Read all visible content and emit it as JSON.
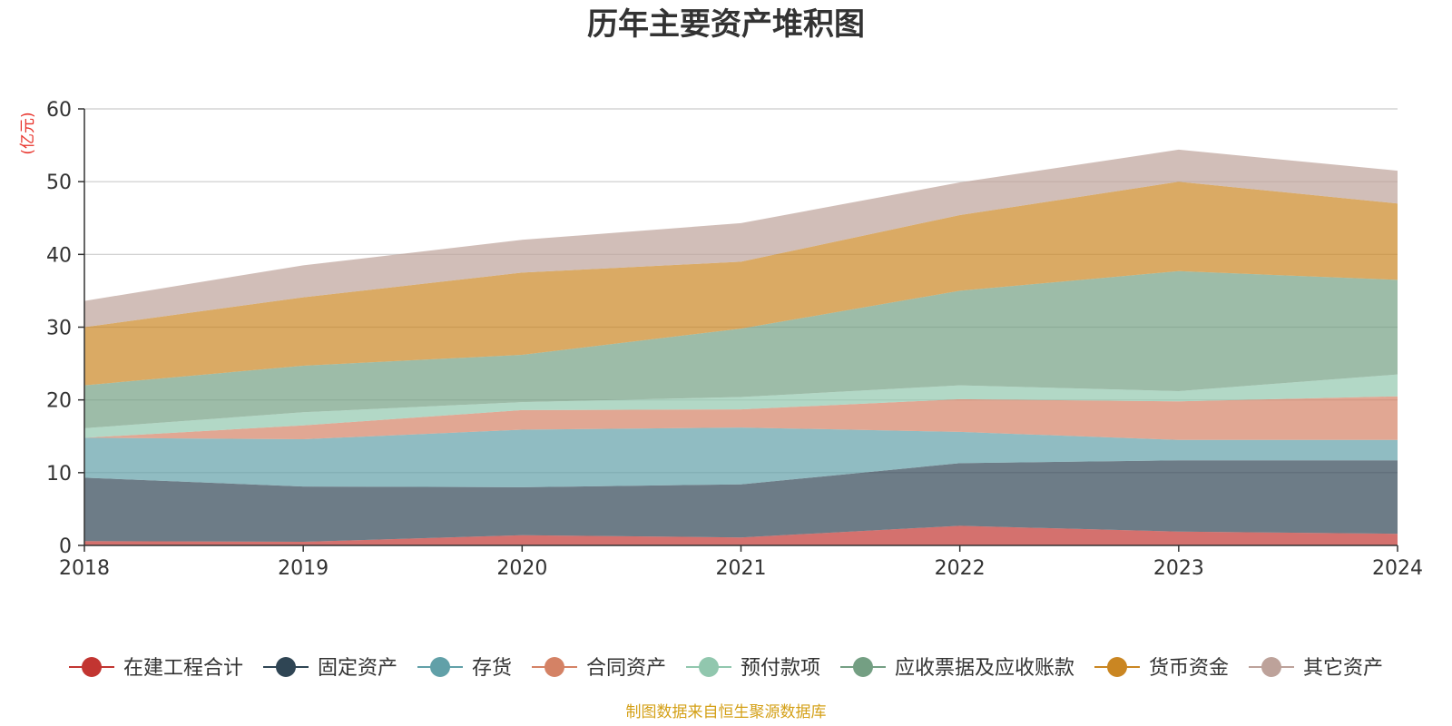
{
  "chart_data": {
    "type": "area",
    "stacked": true,
    "title": "历年主要资产堆积图",
    "ylabel": "(亿元)",
    "xlabel": "",
    "x": [
      "2018",
      "2019",
      "2020",
      "2021",
      "2022",
      "2023",
      "2024"
    ],
    "ylim": [
      0,
      60
    ],
    "yticks": [
      0,
      10,
      20,
      30,
      40,
      50,
      60
    ],
    "grid": true,
    "legend_position": "bottom",
    "series": [
      {
        "name": "在建工程合计",
        "color": "#c23531",
        "values": [
          0.6,
          0.5,
          1.4,
          1.1,
          2.7,
          1.9,
          1.6
        ]
      },
      {
        "name": "固定资产",
        "color": "#2f4554",
        "values": [
          8.7,
          7.6,
          6.6,
          7.3,
          8.6,
          9.8,
          10.1
        ]
      },
      {
        "name": "存货",
        "color": "#61a0a8",
        "values": [
          5.5,
          6.5,
          7.9,
          7.8,
          4.3,
          2.8,
          2.8
        ]
      },
      {
        "name": "合同资产",
        "color": "#d48265",
        "values": [
          0.0,
          1.9,
          2.7,
          2.5,
          4.5,
          5.3,
          6.0
        ]
      },
      {
        "name": "预付款项",
        "color": "#91c7ae",
        "values": [
          1.3,
          1.8,
          1.1,
          1.7,
          1.9,
          1.4,
          3.0
        ]
      },
      {
        "name": "应收票据及应收账款",
        "color": "#749f83",
        "values": [
          5.9,
          6.4,
          6.5,
          9.4,
          13.0,
          16.5,
          13.0
        ]
      },
      {
        "name": "货币资金",
        "color": "#ca8622",
        "values": [
          8.0,
          9.4,
          11.3,
          9.2,
          10.4,
          12.3,
          10.5
        ]
      },
      {
        "name": "其它资产",
        "color": "#bda29a",
        "values": [
          3.6,
          4.4,
          4.5,
          5.3,
          4.5,
          4.4,
          4.5
        ]
      }
    ],
    "source": "制图数据来自恒生聚源数据库"
  }
}
